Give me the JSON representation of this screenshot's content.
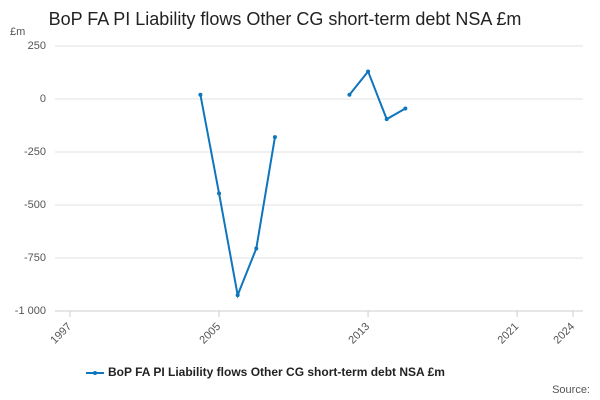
{
  "chart_data": {
    "type": "line",
    "title": "BoP FA PI Liability flows Other CG short-term debt NSA £m",
    "y_unit": "£m",
    "source_label": "Source:",
    "x": [
      2004,
      2005,
      2006,
      2007,
      2008,
      2009,
      2010,
      2011,
      2012,
      2013,
      2014,
      2015
    ],
    "series": [
      {
        "name": "BoP FA PI Liability flows Other CG short-term debt NSA £m",
        "color": "#0f75bc",
        "values": [
          20,
          -445,
          -925,
          -705,
          -180,
          null,
          null,
          null,
          20,
          130,
          -95,
          -45
        ]
      }
    ],
    "xlim": [
      1997,
      2024
    ],
    "xticks": [
      1997,
      2005,
      2013,
      2021,
      2024
    ],
    "ylim": [
      -1000,
      250
    ],
    "yticks": [
      250,
      0,
      -250,
      -500,
      -750,
      {
        "value": -1000,
        "label": "-1 000"
      }
    ],
    "grid": true,
    "legend": "bottom"
  }
}
